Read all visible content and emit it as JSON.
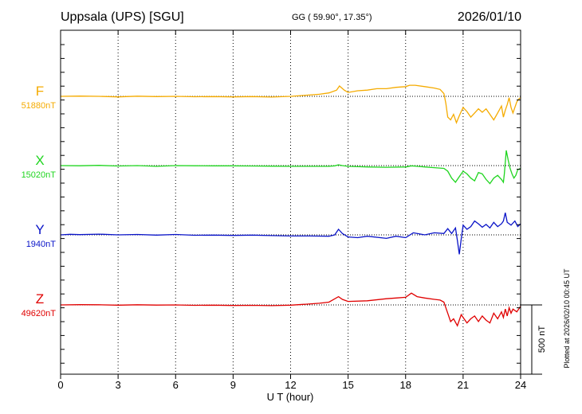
{
  "header": {
    "station": "Uppsala (UPS)  [SGU]",
    "coords": "GG ( 59.90°,  17.35°)",
    "date": "2026/01/10"
  },
  "footer_note": "Plotted at 2026/02/10 00:45 UT",
  "chart_data": {
    "type": "line",
    "xlabel": "U T (hour)",
    "xlim": [
      0,
      24
    ],
    "x_ticks": [
      "0",
      "3",
      "6",
      "9",
      "12",
      "15",
      "18",
      "21",
      "24"
    ],
    "scale_bar": "500 nT",
    "grid": true,
    "series": [
      {
        "name": "F",
        "baseline_label": "51880nT",
        "color": "#f5ab00",
        "points": [
          [
            0,
            0
          ],
          [
            1,
            2
          ],
          [
            2,
            0
          ],
          [
            3,
            -4
          ],
          [
            4,
            1
          ],
          [
            5,
            -2
          ],
          [
            6,
            0
          ],
          [
            7,
            -3
          ],
          [
            8,
            -2
          ],
          [
            9,
            -4
          ],
          [
            10,
            -2
          ],
          [
            11,
            -5
          ],
          [
            12,
            0
          ],
          [
            12.8,
            8
          ],
          [
            13.5,
            15
          ],
          [
            14.0,
            25
          ],
          [
            14.4,
            45
          ],
          [
            14.55,
            75
          ],
          [
            14.8,
            45
          ],
          [
            15.0,
            28
          ],
          [
            15.5,
            40
          ],
          [
            16,
            45
          ],
          [
            16.5,
            55
          ],
          [
            17,
            55
          ],
          [
            17.5,
            65
          ],
          [
            18.0,
            70
          ],
          [
            18.2,
            80
          ],
          [
            18.5,
            80
          ],
          [
            19.0,
            70
          ],
          [
            19.5,
            60
          ],
          [
            19.8,
            50
          ],
          [
            20.0,
            20
          ],
          [
            20.1,
            -50
          ],
          [
            20.2,
            -150
          ],
          [
            20.35,
            -170
          ],
          [
            20.5,
            -130
          ],
          [
            20.65,
            -190
          ],
          [
            20.8,
            -140
          ],
          [
            21.0,
            -80
          ],
          [
            21.2,
            -110
          ],
          [
            21.4,
            -150
          ],
          [
            21.6,
            -120
          ],
          [
            21.8,
            -90
          ],
          [
            22.0,
            -115
          ],
          [
            22.2,
            -90
          ],
          [
            22.4,
            -130
          ],
          [
            22.6,
            -170
          ],
          [
            22.8,
            -120
          ],
          [
            23.0,
            -70
          ],
          [
            23.1,
            -150
          ],
          [
            23.2,
            -100
          ],
          [
            23.3,
            -60
          ],
          [
            23.4,
            -10
          ],
          [
            23.5,
            -80
          ],
          [
            23.6,
            -120
          ],
          [
            23.7,
            -80
          ],
          [
            23.8,
            -40
          ],
          [
            23.9,
            -20
          ],
          [
            24,
            -10
          ]
        ]
      },
      {
        "name": "X",
        "baseline_label": "15020nT",
        "color": "#1fd51f",
        "points": [
          [
            0,
            0
          ],
          [
            1,
            -1
          ],
          [
            2,
            2
          ],
          [
            3,
            -3
          ],
          [
            4,
            0
          ],
          [
            5,
            -5
          ],
          [
            6,
            0
          ],
          [
            7,
            -1
          ],
          [
            8,
            -2
          ],
          [
            9,
            -2
          ],
          [
            10,
            -3
          ],
          [
            11,
            -4
          ],
          [
            12,
            -5
          ],
          [
            13,
            -5
          ],
          [
            14,
            -5
          ],
          [
            14.3,
            -2
          ],
          [
            14.5,
            6
          ],
          [
            14.7,
            0
          ],
          [
            15,
            -5
          ],
          [
            16,
            -10
          ],
          [
            17,
            -12
          ],
          [
            18,
            -10
          ],
          [
            18.3,
            -2
          ],
          [
            18.6,
            -5
          ],
          [
            19,
            -10
          ],
          [
            19.5,
            -15
          ],
          [
            20,
            -20
          ],
          [
            20.2,
            -40
          ],
          [
            20.4,
            -90
          ],
          [
            20.6,
            -120
          ],
          [
            20.8,
            -80
          ],
          [
            21.0,
            -40
          ],
          [
            21.2,
            -60
          ],
          [
            21.4,
            -90
          ],
          [
            21.6,
            -110
          ],
          [
            21.8,
            -50
          ],
          [
            22.0,
            -60
          ],
          [
            22.2,
            -100
          ],
          [
            22.4,
            -130
          ],
          [
            22.6,
            -90
          ],
          [
            22.8,
            -70
          ],
          [
            23.0,
            -100
          ],
          [
            23.1,
            -120
          ],
          [
            23.15,
            -60
          ],
          [
            23.25,
            110
          ],
          [
            23.35,
            40
          ],
          [
            23.45,
            -20
          ],
          [
            23.55,
            -60
          ],
          [
            23.65,
            -90
          ],
          [
            23.75,
            -70
          ],
          [
            23.85,
            -30
          ],
          [
            24,
            -20
          ]
        ]
      },
      {
        "name": "Y",
        "baseline_label": "1940nT",
        "color": "#0a14c8",
        "points": [
          [
            0,
            0
          ],
          [
            0.5,
            4
          ],
          [
            1,
            2
          ],
          [
            2,
            5
          ],
          [
            3,
            0
          ],
          [
            4,
            3
          ],
          [
            5,
            -2
          ],
          [
            6,
            3
          ],
          [
            7,
            -3
          ],
          [
            8,
            -2
          ],
          [
            9,
            -4
          ],
          [
            10,
            -2
          ],
          [
            11,
            -5
          ],
          [
            12,
            -8
          ],
          [
            13,
            -8
          ],
          [
            14,
            -10
          ],
          [
            14.3,
            0
          ],
          [
            14.5,
            40
          ],
          [
            14.7,
            10
          ],
          [
            15,
            -15
          ],
          [
            15.5,
            -20
          ],
          [
            16,
            -10
          ],
          [
            17,
            -25
          ],
          [
            17.5,
            -10
          ],
          [
            18,
            -20
          ],
          [
            18.4,
            15
          ],
          [
            18.8,
            5
          ],
          [
            19,
            0
          ],
          [
            19.5,
            15
          ],
          [
            20,
            10
          ],
          [
            20.2,
            45
          ],
          [
            20.4,
            10
          ],
          [
            20.6,
            50
          ],
          [
            20.7,
            -40
          ],
          [
            20.8,
            -140
          ],
          [
            20.9,
            -30
          ],
          [
            21,
            70
          ],
          [
            21.2,
            40
          ],
          [
            21.4,
            60
          ],
          [
            21.6,
            100
          ],
          [
            21.8,
            80
          ],
          [
            22,
            55
          ],
          [
            22.2,
            75
          ],
          [
            22.4,
            50
          ],
          [
            22.6,
            90
          ],
          [
            22.8,
            60
          ],
          [
            23.0,
            80
          ],
          [
            23.1,
            100
          ],
          [
            23.2,
            160
          ],
          [
            23.3,
            90
          ],
          [
            23.5,
            70
          ],
          [
            23.7,
            100
          ],
          [
            23.85,
            60
          ],
          [
            24,
            80
          ]
        ]
      },
      {
        "name": "Z",
        "baseline_label": "49620nT",
        "color": "#e00000",
        "points": [
          [
            0,
            0
          ],
          [
            1,
            2
          ],
          [
            2,
            1
          ],
          [
            3,
            -2
          ],
          [
            4,
            1
          ],
          [
            5,
            -1
          ],
          [
            6,
            0
          ],
          [
            7,
            -3
          ],
          [
            8,
            -2
          ],
          [
            9,
            -4
          ],
          [
            10,
            -3
          ],
          [
            11,
            -5
          ],
          [
            12,
            -2
          ],
          [
            12.8,
            5
          ],
          [
            13.5,
            12
          ],
          [
            14.0,
            20
          ],
          [
            14.5,
            60
          ],
          [
            14.7,
            40
          ],
          [
            15,
            25
          ],
          [
            16,
            30
          ],
          [
            17,
            45
          ],
          [
            17.5,
            50
          ],
          [
            18,
            55
          ],
          [
            18.3,
            85
          ],
          [
            18.6,
            60
          ],
          [
            19,
            50
          ],
          [
            19.5,
            40
          ],
          [
            19.8,
            35
          ],
          [
            20,
            20
          ],
          [
            20.2,
            -60
          ],
          [
            20.35,
            -120
          ],
          [
            20.5,
            -100
          ],
          [
            20.7,
            -150
          ],
          [
            20.9,
            -70
          ],
          [
            21.0,
            -90
          ],
          [
            21.2,
            -130
          ],
          [
            21.4,
            -100
          ],
          [
            21.6,
            -80
          ],
          [
            21.8,
            -120
          ],
          [
            22.0,
            -80
          ],
          [
            22.2,
            -110
          ],
          [
            22.4,
            -130
          ],
          [
            22.6,
            -60
          ],
          [
            22.8,
            -100
          ],
          [
            23.0,
            -50
          ],
          [
            23.1,
            -90
          ],
          [
            23.2,
            -30
          ],
          [
            23.3,
            -80
          ],
          [
            23.4,
            -20
          ],
          [
            23.5,
            -60
          ],
          [
            23.6,
            -30
          ],
          [
            23.8,
            -50
          ],
          [
            24,
            -10
          ]
        ]
      }
    ]
  }
}
